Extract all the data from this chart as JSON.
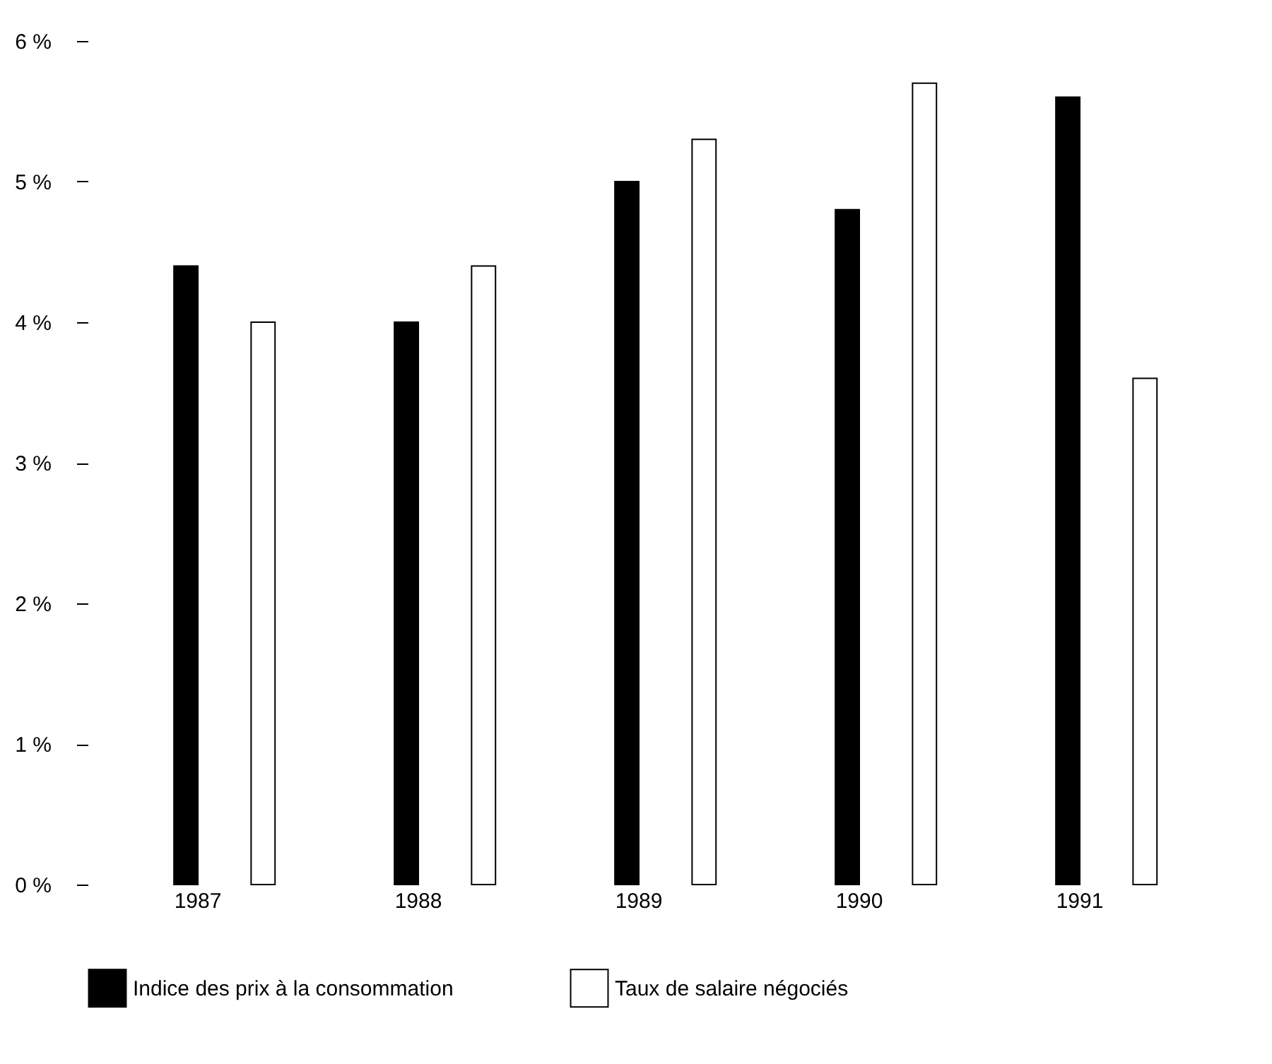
{
  "chart_data": {
    "type": "bar",
    "categories": [
      "1987",
      "1988",
      "1989",
      "1990",
      "1991"
    ],
    "series": [
      {
        "name": "Indice des prix à la consommation",
        "color": "#000000",
        "values": [
          4.4,
          4.0,
          5.0,
          4.8,
          5.6
        ]
      },
      {
        "name": "Taux de salaire négociés",
        "color": "#ffffff",
        "values": [
          4.0,
          4.4,
          5.3,
          5.7,
          3.6
        ]
      }
    ],
    "ylim": [
      0,
      6
    ],
    "yticks": [
      {
        "value": 0,
        "label": "0 %"
      },
      {
        "value": 1,
        "label": "1 %"
      },
      {
        "value": 2,
        "label": "2 %"
      },
      {
        "value": 3,
        "label": "3 %"
      },
      {
        "value": 4,
        "label": "4 %"
      },
      {
        "value": 5,
        "label": "5 %"
      },
      {
        "value": 6,
        "label": "6 %"
      }
    ],
    "grid": false,
    "legend": "bottom"
  }
}
